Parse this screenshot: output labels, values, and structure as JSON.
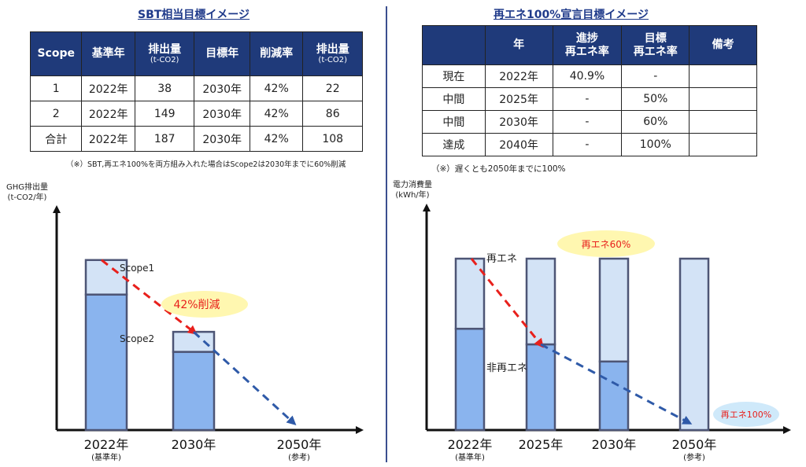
{
  "left": {
    "title": "SBT相当目標イメージ",
    "table": {
      "headers": [
        {
          "main": "Scope",
          "sub": ""
        },
        {
          "main": "基準年",
          "sub": ""
        },
        {
          "main": "排出量",
          "sub": "(t-CO2)"
        },
        {
          "main": "目標年",
          "sub": ""
        },
        {
          "main": "削減率",
          "sub": ""
        },
        {
          "main": "排出量",
          "sub": "(t-CO2)"
        }
      ],
      "rows": [
        [
          "1",
          "2022年",
          "38",
          "2030年",
          "42%",
          "22"
        ],
        [
          "2",
          "2022年",
          "149",
          "2030年",
          "42%",
          "86"
        ],
        [
          "合計",
          "2022年",
          "187",
          "2030年",
          "42%",
          "108"
        ]
      ]
    },
    "note": "（※）SBT,再エネ100%を両方組み入れた場合はScope2は2030年までに60%削減"
  },
  "right": {
    "title": "再エネ100%宣言目標イメージ",
    "table": {
      "headers": [
        {
          "main": "",
          "sub": ""
        },
        {
          "main": "年",
          "sub": ""
        },
        {
          "main": "進捗",
          "sub": "再エネ率"
        },
        {
          "main": "目標",
          "sub": "再エネ率"
        },
        {
          "main": "備考",
          "sub": ""
        }
      ],
      "rows": [
        [
          "現在",
          "2022年",
          "40.9%",
          "-",
          ""
        ],
        [
          "中間",
          "2025年",
          "-",
          "50%",
          ""
        ],
        [
          "中間",
          "2030年",
          "-",
          "60%",
          ""
        ],
        [
          "達成",
          "2040年",
          "-",
          "100%",
          ""
        ]
      ]
    },
    "note": "（※）遅くとも2050年までに100%"
  },
  "chart_data": [
    {
      "type": "bar",
      "stacked": true,
      "ylabel_lines": [
        "GHG排出量",
        "(t-CO2/年)"
      ],
      "categories": [
        {
          "label": "2022年",
          "sub": "(基準年)"
        },
        {
          "label": "2030年",
          "sub": ""
        },
        {
          "label": "2050年",
          "sub": "(参考)"
        }
      ],
      "series": [
        {
          "name": "Scope2",
          "values": [
            149,
            86,
            0
          ],
          "color": "#8ab4ee"
        },
        {
          "name": "Scope1",
          "values": [
            38,
            22,
            0
          ],
          "color": "#d3e3f6"
        }
      ],
      "ylim": [
        0,
        230
      ],
      "annotation": {
        "text": "42%削減",
        "color": "#e8201c",
        "bg": "#fff7b0"
      },
      "trend_red": [
        [
          0,
          187
        ],
        [
          1,
          108
        ]
      ],
      "trend_blue": [
        [
          1,
          108
        ],
        [
          2,
          0
        ]
      ],
      "border_color": "#4d5575",
      "arrow_red": "#e8201c",
      "arrow_blue": "#2f5aa8"
    },
    {
      "type": "bar",
      "stacked": true,
      "ylabel_lines": [
        "電力消費量",
        "(kWh/年)"
      ],
      "categories": [
        {
          "label": "2022年",
          "sub": "(基準年)"
        },
        {
          "label": "2025年",
          "sub": ""
        },
        {
          "label": "2030年",
          "sub": ""
        },
        {
          "label": "2050年",
          "sub": "(参考)"
        }
      ],
      "series": [
        {
          "name": "非再エネ",
          "values": [
            59.1,
            50,
            40,
            0
          ],
          "color": "#8ab4ee"
        },
        {
          "name": "再エネ",
          "values": [
            40.9,
            50,
            60,
            100
          ],
          "color": "#d3e3f6"
        }
      ],
      "ylim": [
        0,
        100
      ],
      "annotation_60": {
        "text": "再エネ60%",
        "color": "#e8201c",
        "bg": "#fff7b0"
      },
      "annotation_100": {
        "text": "再エネ100%",
        "color": "#e8201c",
        "bg": "#cfe9fa"
      },
      "trend_red": [
        [
          0,
          100
        ],
        [
          1,
          50
        ]
      ],
      "trend_blue": [
        [
          1,
          50
        ],
        [
          3,
          0
        ]
      ],
      "border_color": "#4d5575",
      "arrow_red": "#e8201c",
      "arrow_blue": "#2f5aa8"
    }
  ]
}
